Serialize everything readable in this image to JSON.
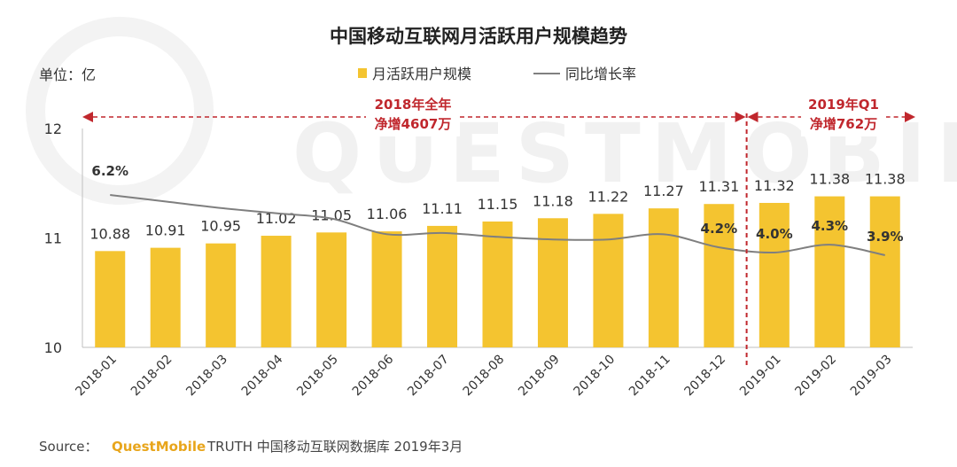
{
  "chart_data": {
    "type": "bar",
    "title": "中国移动互联网月活跃用户规模趋势",
    "unit_label": "单位：亿",
    "categories": [
      "2018-01",
      "2018-02",
      "2018-03",
      "2018-04",
      "2018-05",
      "2018-06",
      "2018-07",
      "2018-08",
      "2018-09",
      "2018-10",
      "2018-11",
      "2018-12",
      "2019-01",
      "2019-02",
      "2019-03"
    ],
    "series": [
      {
        "name": "月活跃用户规模",
        "type": "bar",
        "color": "#f4c430",
        "values": [
          10.88,
          10.91,
          10.95,
          11.02,
          11.05,
          11.06,
          11.11,
          11.15,
          11.18,
          11.22,
          11.27,
          11.31,
          11.32,
          11.38,
          11.38
        ],
        "labels": [
          "10.88",
          "10.91",
          "10.95",
          "11.02",
          "11.05",
          "11.06",
          "11.11",
          "11.15",
          "11.18",
          "11.22",
          "11.27",
          "11.31",
          "11.32",
          "11.38",
          "11.38"
        ]
      },
      {
        "name": "同比增长率",
        "type": "line",
        "color": "#7f7f7f",
        "values": [
          6.2,
          5.95,
          5.7,
          5.5,
          5.3,
          4.7,
          4.75,
          4.6,
          4.5,
          4.5,
          4.7,
          4.2,
          4.0,
          4.3,
          3.9
        ],
        "labeled_points": [
          {
            "index": 0,
            "label": "6.2%"
          },
          {
            "index": 11,
            "label": "4.2%"
          },
          {
            "index": 12,
            "label": "4.0%"
          },
          {
            "index": 13,
            "label": "4.3%"
          },
          {
            "index": 14,
            "label": "3.9%"
          }
        ]
      }
    ],
    "y_ticks": [
      "10",
      "11",
      "12"
    ],
    "ylim": [
      10,
      12
    ],
    "grid": false,
    "legend_position": "top",
    "annotations": [
      {
        "lines": [
          "2018年全年",
          "净增4607万"
        ],
        "from_index": 0,
        "to_index": 11
      },
      {
        "lines": [
          "2019年Q1",
          "净增762万"
        ],
        "from_index": 12,
        "to_index": 14
      }
    ],
    "divider_color": "#c0272d",
    "watermark": "QUESTMOBILE"
  },
  "source": {
    "prefix": "Source：",
    "brand": "QuestMobile",
    "text": "TRUTH 中国移动互联网数据库 2019年3月"
  }
}
